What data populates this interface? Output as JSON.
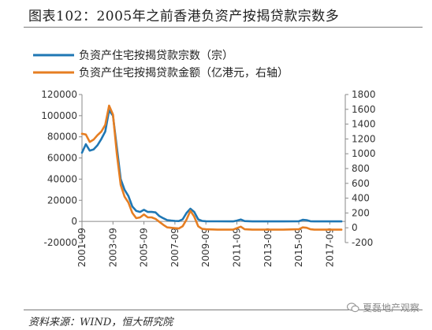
{
  "figure": {
    "title": "图表102：2005年之前香港负资产按揭贷款宗数多",
    "source": "资料来源：WIND，恒大研究院",
    "watermark": "夏磊地产观察"
  },
  "colors": {
    "series1": "#1f77b4",
    "series2": "#e67e22",
    "axis": "#8a8a8a"
  },
  "chart_data": {
    "type": "line",
    "legend": {
      "placement": "top"
    },
    "grid": false,
    "x_ticks": [
      "2001-09",
      "2003-09",
      "2005-09",
      "2007-09",
      "2009-09",
      "2011-09",
      "2013-09",
      "2015-09",
      "2017-09"
    ],
    "x_range": [
      "2001-09",
      "2018-09"
    ],
    "y_left": {
      "min": -20000,
      "max": 120000,
      "ticks": [
        -20000,
        0,
        20000,
        40000,
        60000,
        80000,
        100000,
        120000
      ]
    },
    "y_right": {
      "min": -200,
      "max": 1800,
      "ticks": [
        -200,
        0,
        200,
        400,
        600,
        800,
        1000,
        1200,
        1400,
        1600,
        1800
      ]
    },
    "series": [
      {
        "name": "负资产住宅按揭贷款宗数（宗）",
        "axis": "left",
        "points": [
          [
            "2001-09",
            65000
          ],
          [
            "2001-12",
            73000
          ],
          [
            "2002-03",
            67000
          ],
          [
            "2002-06",
            68000
          ],
          [
            "2002-09",
            72000
          ],
          [
            "2002-12",
            78000
          ],
          [
            "2003-03",
            85000
          ],
          [
            "2003-06",
            105000
          ],
          [
            "2003-09",
            100000
          ],
          [
            "2003-12",
            70000
          ],
          [
            "2004-03",
            40000
          ],
          [
            "2004-06",
            30000
          ],
          [
            "2004-09",
            24000
          ],
          [
            "2004-12",
            14000
          ],
          [
            "2005-03",
            10000
          ],
          [
            "2005-06",
            9000
          ],
          [
            "2005-09",
            11000
          ],
          [
            "2005-12",
            9000
          ],
          [
            "2006-03",
            9000
          ],
          [
            "2006-06",
            8500
          ],
          [
            "2006-09",
            5000
          ],
          [
            "2006-12",
            3000
          ],
          [
            "2007-03",
            1200
          ],
          [
            "2007-06",
            800
          ],
          [
            "2007-09",
            500
          ],
          [
            "2007-12",
            300
          ],
          [
            "2008-03",
            2000
          ],
          [
            "2008-06",
            8000
          ],
          [
            "2008-09",
            12000
          ],
          [
            "2008-12",
            9000
          ],
          [
            "2009-03",
            2000
          ],
          [
            "2009-06",
            500
          ],
          [
            "2009-09",
            200
          ],
          [
            "2010-06",
            100
          ],
          [
            "2011-06",
            0
          ],
          [
            "2011-09",
            800
          ],
          [
            "2011-12",
            1800
          ],
          [
            "2012-03",
            300
          ],
          [
            "2012-09",
            0
          ],
          [
            "2013-09",
            0
          ],
          [
            "2014-09",
            0
          ],
          [
            "2015-09",
            200
          ],
          [
            "2015-12",
            1500
          ],
          [
            "2016-03",
            1200
          ],
          [
            "2016-06",
            200
          ],
          [
            "2016-09",
            0
          ],
          [
            "2017-09",
            0
          ],
          [
            "2018-06",
            0
          ]
        ]
      },
      {
        "name": "负资产住宅按揭贷款金额（亿港元，右轴）",
        "axis": "right",
        "points": [
          [
            "2001-09",
            1270
          ],
          [
            "2001-12",
            1260
          ],
          [
            "2002-03",
            1160
          ],
          [
            "2002-06",
            1190
          ],
          [
            "2002-09",
            1250
          ],
          [
            "2002-12",
            1300
          ],
          [
            "2003-03",
            1390
          ],
          [
            "2003-06",
            1650
          ],
          [
            "2003-09",
            1530
          ],
          [
            "2003-12",
            1000
          ],
          [
            "2004-03",
            580
          ],
          [
            "2004-06",
            420
          ],
          [
            "2004-09",
            340
          ],
          [
            "2004-12",
            200
          ],
          [
            "2005-03",
            130
          ],
          [
            "2005-06",
            140
          ],
          [
            "2005-09",
            180
          ],
          [
            "2005-12",
            140
          ],
          [
            "2006-03",
            140
          ],
          [
            "2006-06",
            120
          ],
          [
            "2006-09",
            80
          ],
          [
            "2006-12",
            40
          ],
          [
            "2007-03",
            5
          ],
          [
            "2007-06",
            0
          ],
          [
            "2007-09",
            -5
          ],
          [
            "2007-12",
            -10
          ],
          [
            "2008-03",
            20
          ],
          [
            "2008-06",
            110
          ],
          [
            "2008-09",
            230
          ],
          [
            "2008-12",
            150
          ],
          [
            "2009-03",
            20
          ],
          [
            "2009-06",
            -15
          ],
          [
            "2009-09",
            -20
          ],
          [
            "2010-06",
            -25
          ],
          [
            "2011-06",
            -25
          ],
          [
            "2011-09",
            -5
          ],
          [
            "2011-12",
            15
          ],
          [
            "2012-03",
            -20
          ],
          [
            "2012-09",
            -25
          ],
          [
            "2013-09",
            -25
          ],
          [
            "2014-09",
            -25
          ],
          [
            "2015-09",
            -20
          ],
          [
            "2015-12",
            5
          ],
          [
            "2016-03",
            0
          ],
          [
            "2016-06",
            -20
          ],
          [
            "2016-09",
            -25
          ],
          [
            "2017-09",
            -25
          ],
          [
            "2018-06",
            -25
          ]
        ]
      }
    ]
  }
}
